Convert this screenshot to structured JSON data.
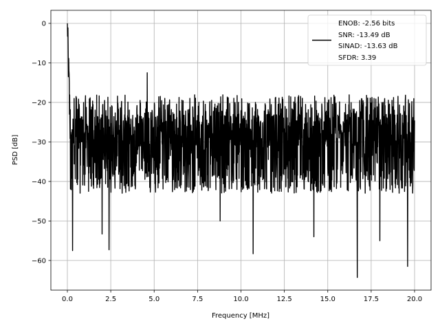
{
  "chart_data": {
    "type": "line",
    "title": "",
    "xlabel": "Frequency [MHz]",
    "ylabel": "PSD [dB]",
    "xlim": [
      -0.95,
      20.95
    ],
    "ylim": [
      -67.5,
      3.3
    ],
    "grid": true,
    "legend_position": "top-right",
    "x_ticks": [
      0.0,
      2.5,
      5.0,
      7.5,
      10.0,
      12.5,
      15.0,
      17.5,
      20.0
    ],
    "x_tick_labels": [
      "0.0",
      "2.5",
      "5.0",
      "7.5",
      "10.0",
      "12.5",
      "15.0",
      "17.5",
      "20.0"
    ],
    "y_ticks": [
      0,
      -10,
      -20,
      -30,
      -40,
      -50,
      -60
    ],
    "y_tick_labels": [
      "0",
      "−10",
      "−20",
      "−30",
      "−40",
      "−50",
      "−60"
    ],
    "series": [
      {
        "color": "#000000",
        "x_range": [
          0,
          20
        ],
        "approx_level_db": -27,
        "approx_band_db": [
          -36,
          -18
        ],
        "peaks": [
          {
            "x": 0.0,
            "y": 0.0
          },
          {
            "x": 0.06,
            "y": -13.5
          },
          {
            "x": 0.12,
            "y": -23.0
          },
          {
            "x": 0.5,
            "y": -18.5
          },
          {
            "x": 4.6,
            "y": -12.5
          }
        ],
        "dips": [
          {
            "x": 0.3,
            "y": -57.5
          },
          {
            "x": 2.0,
            "y": -53.3
          },
          {
            "x": 2.4,
            "y": -57.3
          },
          {
            "x": 8.8,
            "y": -50.0
          },
          {
            "x": 10.7,
            "y": -58.3
          },
          {
            "x": 14.2,
            "y": -54.0
          },
          {
            "x": 16.7,
            "y": -64.3
          },
          {
            "x": 18.0,
            "y": -55.0
          },
          {
            "x": 19.6,
            "y": -61.5
          }
        ]
      }
    ],
    "legend_lines": [
      "ENOB: -2.56 bits",
      "SNR: -13.49 dB",
      "SINAD: -13.63 dB",
      "SFDR: 3.39"
    ]
  }
}
